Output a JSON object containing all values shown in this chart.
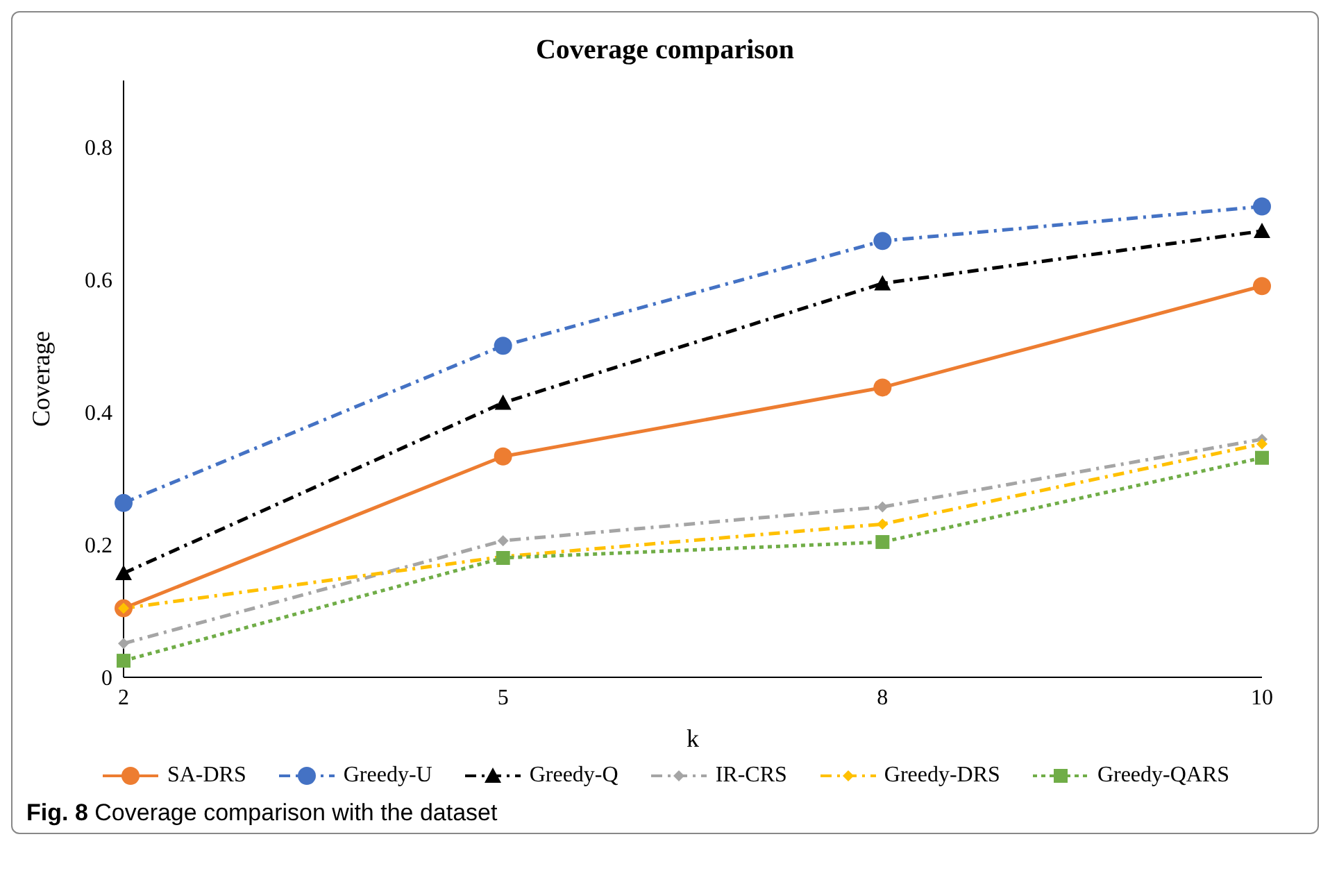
{
  "chart_data": {
    "type": "line",
    "title": "Coverage comparison",
    "xlabel": "k",
    "ylabel": "Coverage",
    "categories": [
      "2",
      "5",
      "8",
      "10"
    ],
    "series": [
      {
        "name": "SA-DRS",
        "color": "#ed7d31",
        "marker": "circle",
        "line_style": "solid",
        "values": [
          0.104,
          0.333,
          0.437,
          0.59
        ]
      },
      {
        "name": "Greedy-U",
        "color": "#4472c4",
        "marker": "circle",
        "line_style": "dashed",
        "values": [
          0.263,
          0.5,
          0.658,
          0.71
        ]
      },
      {
        "name": "Greedy-Q",
        "color": "#000000",
        "marker": "triangle",
        "line_style": "dashed",
        "values": [
          0.157,
          0.414,
          0.594,
          0.673
        ]
      },
      {
        "name": "IR-CRS",
        "color": "#a5a5a5",
        "marker": "diamond",
        "line_style": "dashed",
        "values": [
          0.051,
          0.206,
          0.257,
          0.359
        ]
      },
      {
        "name": "Greedy-DRS",
        "color": "#ffc000",
        "marker": "diamond",
        "line_style": "dashed",
        "values": [
          0.104,
          0.182,
          0.231,
          0.352
        ]
      },
      {
        "name": "Greedy-QARS",
        "color": "#70ad47",
        "marker": "square",
        "line_style": "dotted",
        "values": [
          0.025,
          0.18,
          0.204,
          0.331
        ]
      }
    ],
    "ylim": [
      0,
      0.9
    ],
    "yticks": [
      0,
      0.2,
      0.4,
      0.6,
      0.8
    ],
    "grid": false,
    "legend": "bottom",
    "annotations": [
      "Fig. 8 Coverage comparison with the dataset"
    ]
  }
}
